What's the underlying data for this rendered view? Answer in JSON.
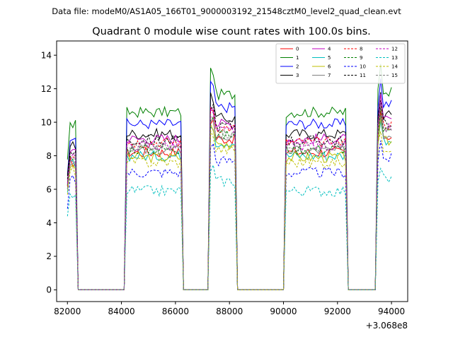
{
  "chart_data": {
    "type": "line",
    "suptitle": "Data file: modeM0/AS1A05_166T01_9000003192_21548cztM0_level2_quad_clean.evt",
    "title": "Quadrant 0 module wise count rates with 100.0s bins.",
    "xlabel": "",
    "ylabel": "",
    "x_offset_label": "+3.068e8",
    "xlim": [
      81600,
      94600
    ],
    "ylim": [
      -0.7,
      14.85
    ],
    "x_ticks": [
      82000,
      84000,
      86000,
      88000,
      90000,
      92000,
      94000
    ],
    "x_tick_labels": [
      "82000",
      "84000",
      "86000",
      "88000",
      "90000",
      "92000",
      "94000"
    ],
    "y_ticks": [
      0,
      2,
      4,
      6,
      8,
      10,
      12,
      14
    ],
    "y_tick_labels": [
      "0",
      "2",
      "4",
      "6",
      "8",
      "10",
      "12",
      "14"
    ],
    "legend_location": "upper-right",
    "legend_columns": 4,
    "series": [
      {
        "name": "0",
        "color": "#ff0000",
        "dash": "solid",
        "level": 8.2
      },
      {
        "name": "1",
        "color": "#008000",
        "dash": "solid",
        "level": 10.6
      },
      {
        "name": "2",
        "color": "#0000ff",
        "dash": "solid",
        "level": 9.9
      },
      {
        "name": "3",
        "color": "#000000",
        "dash": "solid",
        "level": 9.3
      },
      {
        "name": "4",
        "color": "#c000c0",
        "dash": "solid",
        "level": 9.0
      },
      {
        "name": "5",
        "color": "#00bfbf",
        "dash": "solid",
        "level": 8.0
      },
      {
        "name": "6",
        "color": "#bfbf00",
        "dash": "solid",
        "level": 7.9
      },
      {
        "name": "7",
        "color": "#808080",
        "dash": "solid",
        "level": 8.3
      },
      {
        "name": "8",
        "color": "#ff0000",
        "dash": "dashed",
        "level": 8.8
      },
      {
        "name": "9",
        "color": "#008000",
        "dash": "dashed",
        "level": 8.4
      },
      {
        "name": "10",
        "color": "#0000ff",
        "dash": "dashed",
        "level": 7.0
      },
      {
        "name": "11",
        "color": "#000000",
        "dash": "dashed",
        "level": 8.9
      },
      {
        "name": "12",
        "color": "#c000c0",
        "dash": "dashed",
        "level": 8.6
      },
      {
        "name": "13",
        "color": "#00bfbf",
        "dash": "dashed",
        "level": 5.9
      },
      {
        "name": "14",
        "color": "#bfbf00",
        "dash": "dashed",
        "level": 7.6
      },
      {
        "name": "15",
        "color": "#808080",
        "dash": "dashed",
        "level": 8.5
      }
    ],
    "segments": [
      {
        "name": "active",
        "x_start": 82000,
        "x_end": 82300,
        "scale": 0.93
      },
      {
        "name": "gap",
        "x_start": 82400,
        "x_end": 84100
      },
      {
        "name": "active",
        "x_start": 84200,
        "x_end": 86200,
        "scale": 1.0
      },
      {
        "name": "gap",
        "x_start": 86300,
        "x_end": 87200
      },
      {
        "name": "active",
        "x_start": 87300,
        "x_end": 88200,
        "scale": 1.1
      },
      {
        "name": "gap",
        "x_start": 88300,
        "x_end": 90000
      },
      {
        "name": "active",
        "x_start": 90100,
        "x_end": 92300,
        "scale": 1.0
      },
      {
        "name": "gap",
        "x_start": 92400,
        "x_end": 93400
      },
      {
        "name": "active",
        "x_start": 93500,
        "x_end": 94000,
        "scale": 1.12
      }
    ]
  }
}
